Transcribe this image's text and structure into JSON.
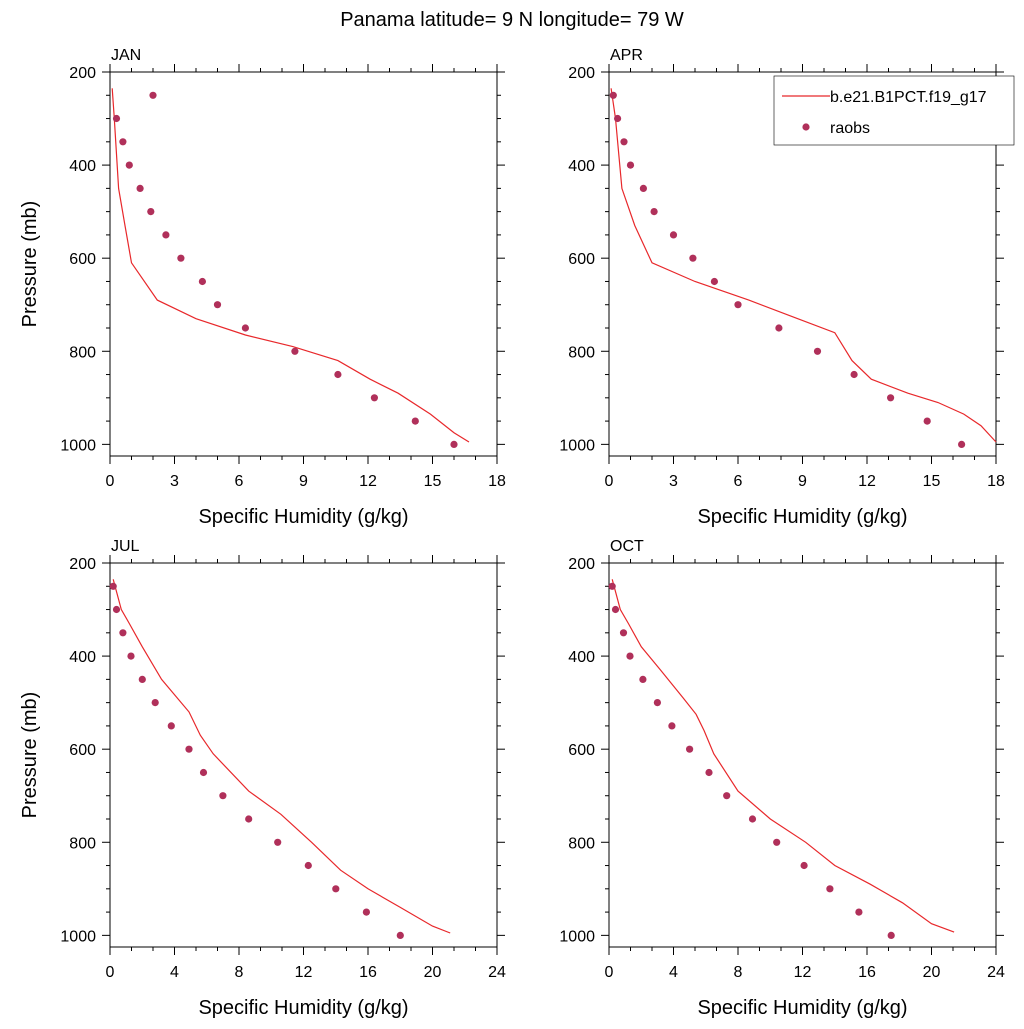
{
  "title": "Panama  latitude= 9 N longitude= 79 W",
  "colors": {
    "model": "#e8282b",
    "obs": "#b0305a",
    "axis": "#000000"
  },
  "legend": {
    "placement": "top-right",
    "model_label": "b.e21.B1PCT.f19_g17",
    "obs_label": "raobs"
  },
  "chart_data": [
    {
      "type": "line",
      "panel": "JAN",
      "xlabel": "Specific Humidity (g/kg)",
      "ylabel": "Pressure (mb)",
      "xlim": [
        0,
        18
      ],
      "ylim": [
        1025,
        200
      ],
      "xticks": [
        0,
        3,
        6,
        9,
        12,
        15,
        18
      ],
      "yticks": [
        200,
        400,
        600,
        800,
        1000
      ],
      "series": [
        {
          "kind": "model",
          "x": [
            0.1,
            0.2,
            0.4,
            0.7,
            1.0,
            2.2,
            4.0,
            6.3,
            8.5,
            10.6,
            12.1,
            13.4,
            14.9,
            16.0,
            16.7
          ],
          "y": [
            235,
            300,
            450,
            530,
            610,
            690,
            730,
            765,
            790,
            820,
            860,
            890,
            935,
            975,
            995
          ]
        },
        {
          "kind": "obs",
          "x": [
            2.0,
            0.3,
            0.6,
            0.9,
            1.4,
            1.9,
            2.6,
            3.3,
            4.3,
            5.0,
            6.3,
            8.6,
            10.6,
            12.3,
            14.2,
            16.0
          ],
          "y": [
            250,
            300,
            350,
            400,
            450,
            500,
            550,
            600,
            650,
            700,
            750,
            800,
            850,
            900,
            950,
            1000
          ]
        }
      ]
    },
    {
      "type": "line",
      "panel": "APR",
      "xlabel": "Specific Humidity (g/kg)",
      "ylabel": "",
      "xlim": [
        0,
        18
      ],
      "ylim": [
        1025,
        200
      ],
      "xticks": [
        0,
        3,
        6,
        9,
        12,
        15,
        18
      ],
      "yticks": [
        200,
        400,
        600,
        800,
        1000
      ],
      "series": [
        {
          "kind": "model",
          "x": [
            0.1,
            0.3,
            0.6,
            1.2,
            2.0,
            4.0,
            6.5,
            8.5,
            10.5,
            11.3,
            12.2,
            13.9,
            15.3,
            16.5,
            17.3,
            18.0
          ],
          "y": [
            235,
            300,
            450,
            530,
            610,
            650,
            690,
            725,
            760,
            820,
            860,
            890,
            910,
            935,
            960,
            995
          ]
        },
        {
          "kind": "obs",
          "x": [
            0.2,
            0.4,
            0.7,
            1.0,
            1.6,
            2.1,
            3.0,
            3.9,
            4.9,
            6.0,
            7.9,
            9.7,
            11.4,
            13.1,
            14.8,
            16.4
          ],
          "y": [
            250,
            300,
            350,
            400,
            450,
            500,
            550,
            600,
            650,
            700,
            750,
            800,
            850,
            900,
            950,
            1000
          ]
        }
      ]
    },
    {
      "type": "line",
      "panel": "JUL",
      "xlabel": "Specific Humidity (g/kg)",
      "ylabel": "Pressure (mb)",
      "xlim": [
        0,
        24
      ],
      "ylim": [
        1025,
        200
      ],
      "xticks": [
        0,
        4,
        8,
        12,
        16,
        20,
        24
      ],
      "yticks": [
        200,
        400,
        600,
        800,
        1000
      ],
      "series": [
        {
          "kind": "model",
          "x": [
            0.2,
            0.7,
            1.2,
            2.0,
            3.2,
            4.9,
            5.6,
            6.4,
            8.6,
            10.6,
            12.5,
            14.3,
            16.0,
            18.0,
            20.0,
            21.1
          ],
          "y": [
            235,
            300,
            330,
            380,
            450,
            520,
            570,
            610,
            690,
            740,
            800,
            860,
            900,
            940,
            980,
            995
          ]
        },
        {
          "kind": "obs",
          "x": [
            0.2,
            0.4,
            0.8,
            1.3,
            2.0,
            2.8,
            3.8,
            4.9,
            5.8,
            7.0,
            8.6,
            10.4,
            12.3,
            14.0,
            15.9,
            18.0
          ],
          "y": [
            250,
            300,
            350,
            400,
            450,
            500,
            550,
            600,
            650,
            700,
            750,
            800,
            850,
            900,
            950,
            1000
          ]
        }
      ]
    },
    {
      "type": "line",
      "panel": "OCT",
      "xlabel": "Specific Humidity (g/kg)",
      "ylabel": "",
      "xlim": [
        0,
        24
      ],
      "ylim": [
        1025,
        200
      ],
      "xticks": [
        0,
        4,
        8,
        12,
        16,
        20,
        24
      ],
      "yticks": [
        200,
        400,
        600,
        800,
        1000
      ],
      "series": [
        {
          "kind": "model",
          "x": [
            0.2,
            0.7,
            1.2,
            2.0,
            3.2,
            4.6,
            5.4,
            5.9,
            6.5,
            8.0,
            10.0,
            12.2,
            14.0,
            16.2,
            18.2,
            20.0,
            21.4
          ],
          "y": [
            235,
            300,
            330,
            380,
            430,
            490,
            525,
            560,
            610,
            690,
            750,
            800,
            850,
            890,
            930,
            975,
            993
          ]
        },
        {
          "kind": "obs",
          "x": [
            0.2,
            0.4,
            0.9,
            1.3,
            2.1,
            3.0,
            3.9,
            5.0,
            6.2,
            7.3,
            8.9,
            10.4,
            12.1,
            13.7,
            15.5,
            17.5
          ],
          "y": [
            250,
            300,
            350,
            400,
            450,
            500,
            550,
            600,
            650,
            700,
            750,
            800,
            850,
            900,
            950,
            1000
          ]
        }
      ]
    }
  ]
}
